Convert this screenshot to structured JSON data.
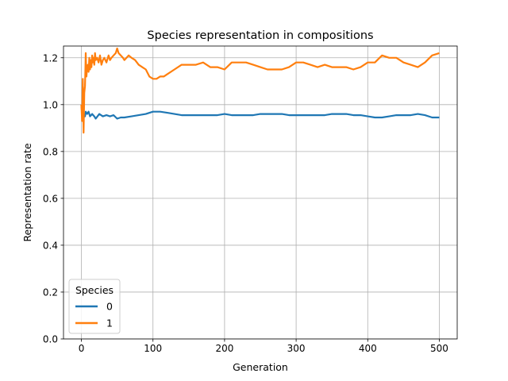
{
  "chart_data": {
    "type": "line",
    "title": "Species representation in compositions",
    "xlabel": "Generation",
    "ylabel": "Representation rate",
    "xlim": [
      -25,
      525
    ],
    "ylim": [
      0.0,
      1.25
    ],
    "xticks": [
      0,
      100,
      200,
      300,
      400,
      500
    ],
    "yticks": [
      0.0,
      0.2,
      0.4,
      0.6,
      0.8,
      1.0,
      1.2
    ],
    "xtick_labels": [
      "0",
      "100",
      "200",
      "300",
      "400",
      "500"
    ],
    "ytick_labels": [
      "0.0",
      "0.2",
      "0.4",
      "0.6",
      "0.8",
      "1.0",
      "1.2"
    ],
    "grid": true,
    "legend": {
      "title": "Species",
      "placement": "lower-left"
    },
    "series": [
      {
        "name": "0",
        "color": "#1f77b4",
        "x": [
          0,
          1,
          2,
          3,
          4,
          5,
          6,
          8,
          10,
          12,
          15,
          18,
          20,
          25,
          30,
          35,
          40,
          45,
          50,
          55,
          60,
          70,
          80,
          90,
          100,
          110,
          120,
          130,
          140,
          150,
          160,
          170,
          180,
          190,
          200,
          210,
          220,
          230,
          240,
          250,
          260,
          270,
          280,
          290,
          300,
          310,
          320,
          330,
          340,
          350,
          360,
          370,
          380,
          390,
          400,
          410,
          420,
          430,
          440,
          450,
          460,
          470,
          480,
          490,
          500
        ],
        "y": [
          1.0,
          0.97,
          0.99,
          0.94,
          0.96,
          0.95,
          0.97,
          0.96,
          0.97,
          0.95,
          0.96,
          0.95,
          0.94,
          0.96,
          0.95,
          0.955,
          0.95,
          0.955,
          0.94,
          0.945,
          0.945,
          0.95,
          0.955,
          0.96,
          0.97,
          0.97,
          0.965,
          0.96,
          0.955,
          0.955,
          0.955,
          0.955,
          0.955,
          0.955,
          0.96,
          0.955,
          0.955,
          0.955,
          0.955,
          0.96,
          0.96,
          0.96,
          0.96,
          0.955,
          0.955,
          0.955,
          0.955,
          0.955,
          0.955,
          0.96,
          0.96,
          0.96,
          0.955,
          0.955,
          0.95,
          0.945,
          0.945,
          0.95,
          0.955,
          0.955,
          0.955,
          0.96,
          0.955,
          0.945,
          0.945
        ]
      },
      {
        "name": "1",
        "color": "#ff7f0e",
        "x": [
          0,
          1,
          2,
          3,
          4,
          5,
          6,
          7,
          8,
          9,
          10,
          11,
          12,
          13,
          14,
          15,
          16,
          17,
          18,
          19,
          20,
          22,
          24,
          26,
          28,
          30,
          32,
          35,
          38,
          40,
          42,
          45,
          48,
          50,
          52,
          55,
          58,
          60,
          63,
          66,
          70,
          75,
          80,
          85,
          90,
          95,
          100,
          105,
          110,
          115,
          120,
          130,
          140,
          150,
          160,
          170,
          180,
          190,
          200,
          210,
          220,
          230,
          240,
          250,
          260,
          270,
          280,
          290,
          300,
          310,
          320,
          330,
          340,
          350,
          360,
          370,
          380,
          390,
          400,
          410,
          420,
          430,
          440,
          450,
          460,
          470,
          480,
          490,
          500
        ],
        "y": [
          1.0,
          0.93,
          1.11,
          0.88,
          1.05,
          1.08,
          1.22,
          1.12,
          1.16,
          1.17,
          1.14,
          1.2,
          1.15,
          1.19,
          1.16,
          1.21,
          1.18,
          1.2,
          1.17,
          1.22,
          1.19,
          1.2,
          1.18,
          1.21,
          1.17,
          1.19,
          1.2,
          1.18,
          1.21,
          1.19,
          1.2,
          1.21,
          1.22,
          1.24,
          1.22,
          1.21,
          1.2,
          1.19,
          1.2,
          1.21,
          1.2,
          1.19,
          1.17,
          1.16,
          1.15,
          1.12,
          1.11,
          1.11,
          1.12,
          1.12,
          1.13,
          1.15,
          1.17,
          1.17,
          1.17,
          1.18,
          1.16,
          1.16,
          1.15,
          1.18,
          1.18,
          1.18,
          1.17,
          1.16,
          1.15,
          1.15,
          1.15,
          1.16,
          1.18,
          1.18,
          1.17,
          1.16,
          1.17,
          1.16,
          1.16,
          1.16,
          1.15,
          1.16,
          1.18,
          1.18,
          1.21,
          1.2,
          1.2,
          1.18,
          1.17,
          1.16,
          1.18,
          1.21,
          1.22
        ]
      }
    ]
  }
}
